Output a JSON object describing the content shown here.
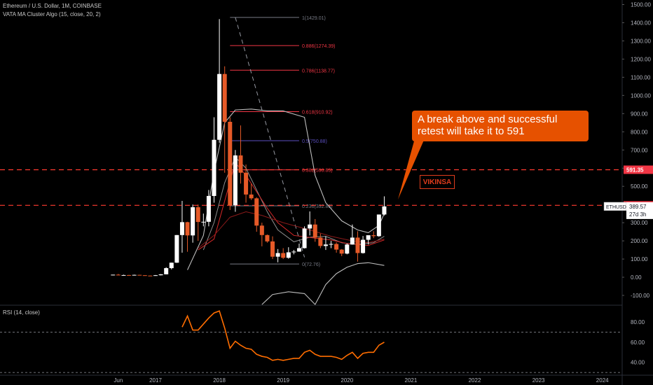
{
  "header": {
    "symbol_line": "Ethereum / U.S. Dollar, 1M, COINBASE",
    "indicator_line": "VATA MA Cluster Algo (15, close, 20, 2)",
    "rsi_label": "RSI (14, close)"
  },
  "annotations": {
    "callout": "A break above and successful retest will take it to 591",
    "stamp": "VIKINSA"
  },
  "colors": {
    "background": "#000000",
    "up_candle": "#ffffff",
    "down_candle": "#e65a28",
    "callout": "#e65100",
    "level_line": "#ff3b30",
    "rsi_line": "#ff6d00"
  },
  "chart_data": [
    {
      "type": "candlestick",
      "y_axis_ticks": [
        -100,
        0,
        100,
        200,
        300,
        400,
        500,
        600,
        700,
        800,
        900,
        1000,
        1100,
        1200,
        1300,
        1400,
        1500
      ],
      "y_axis_labels": [
        "-100.00",
        "0.00",
        "100.00",
        "200.00",
        "300.00",
        "400.00",
        "500.00",
        "600.00",
        "700.00",
        "800.00",
        "900.00",
        "1000.00",
        "1100.00",
        "1200.00",
        "1300.00",
        "1400.00",
        "1500.00"
      ],
      "ylim": [
        -150,
        1525
      ],
      "x_axis_labels": [
        "Jun",
        "2017",
        "2018",
        "2019",
        "2020",
        "2021",
        "2022",
        "2023",
        "2024"
      ],
      "x_axis_positions": [
        "2016-06",
        "2017-01",
        "2018-01",
        "2019-01",
        "2020-01",
        "2021-01",
        "2022-01",
        "2023-01",
        "2024-01"
      ],
      "candles": [
        {
          "t": "2016-05",
          "o": 12,
          "h": 14,
          "l": 10,
          "c": 14
        },
        {
          "t": "2016-06",
          "o": 14,
          "h": 18,
          "l": 11,
          "c": 12
        },
        {
          "t": "2016-07",
          "o": 12,
          "h": 14,
          "l": 11,
          "c": 12
        },
        {
          "t": "2016-08",
          "o": 12,
          "h": 13,
          "l": 10,
          "c": 11
        },
        {
          "t": "2016-09",
          "o": 11,
          "h": 14,
          "l": 11,
          "c": 13
        },
        {
          "t": "2016-10",
          "o": 13,
          "h": 13,
          "l": 10,
          "c": 11
        },
        {
          "t": "2016-11",
          "o": 11,
          "h": 11,
          "l": 8,
          "c": 9
        },
        {
          "t": "2016-12",
          "o": 9,
          "h": 9,
          "l": 6,
          "c": 8
        },
        {
          "t": "2017-01",
          "o": 8,
          "h": 12,
          "l": 8,
          "c": 11
        },
        {
          "t": "2017-02",
          "o": 11,
          "h": 17,
          "l": 10,
          "c": 16
        },
        {
          "t": "2017-03",
          "o": 16,
          "h": 55,
          "l": 16,
          "c": 50
        },
        {
          "t": "2017-04",
          "o": 50,
          "h": 80,
          "l": 43,
          "c": 80
        },
        {
          "t": "2017-05",
          "o": 80,
          "h": 232,
          "l": 79,
          "c": 232
        },
        {
          "t": "2017-06",
          "o": 232,
          "h": 420,
          "l": 135,
          "c": 303
        },
        {
          "t": "2017-07",
          "o": 303,
          "h": 305,
          "l": 140,
          "c": 230
        },
        {
          "t": "2017-08",
          "o": 230,
          "h": 400,
          "l": 190,
          "c": 385
        },
        {
          "t": "2017-09",
          "o": 385,
          "h": 400,
          "l": 200,
          "c": 304
        },
        {
          "t": "2017-10",
          "o": 304,
          "h": 350,
          "l": 280,
          "c": 305
        },
        {
          "t": "2017-11",
          "o": 305,
          "h": 480,
          "l": 280,
          "c": 447
        },
        {
          "t": "2017-12",
          "o": 447,
          "h": 880,
          "l": 410,
          "c": 756
        },
        {
          "t": "2018-01",
          "o": 756,
          "h": 1420,
          "l": 740,
          "c": 1118
        },
        {
          "t": "2018-02",
          "o": 1118,
          "h": 1160,
          "l": 575,
          "c": 855
        },
        {
          "t": "2018-03",
          "o": 855,
          "h": 880,
          "l": 370,
          "c": 396
        },
        {
          "t": "2018-04",
          "o": 396,
          "h": 700,
          "l": 360,
          "c": 670
        },
        {
          "t": "2018-05",
          "o": 670,
          "h": 835,
          "l": 515,
          "c": 575
        },
        {
          "t": "2018-06",
          "o": 575,
          "h": 620,
          "l": 410,
          "c": 455
        },
        {
          "t": "2018-07",
          "o": 455,
          "h": 515,
          "l": 425,
          "c": 434
        },
        {
          "t": "2018-08",
          "o": 434,
          "h": 440,
          "l": 250,
          "c": 284
        },
        {
          "t": "2018-09",
          "o": 284,
          "h": 300,
          "l": 170,
          "c": 232
        },
        {
          "t": "2018-10",
          "o": 232,
          "h": 235,
          "l": 190,
          "c": 197
        },
        {
          "t": "2018-11",
          "o": 197,
          "h": 225,
          "l": 100,
          "c": 113
        },
        {
          "t": "2018-12",
          "o": 113,
          "h": 155,
          "l": 82,
          "c": 133
        },
        {
          "t": "2019-01",
          "o": 133,
          "h": 160,
          "l": 100,
          "c": 107
        },
        {
          "t": "2019-02",
          "o": 107,
          "h": 165,
          "l": 102,
          "c": 137
        },
        {
          "t": "2019-03",
          "o": 137,
          "h": 150,
          "l": 126,
          "c": 141
        },
        {
          "t": "2019-04",
          "o": 141,
          "h": 185,
          "l": 140,
          "c": 160
        },
        {
          "t": "2019-05",
          "o": 160,
          "h": 280,
          "l": 158,
          "c": 268
        },
        {
          "t": "2019-06",
          "o": 268,
          "h": 362,
          "l": 230,
          "c": 290
        },
        {
          "t": "2019-07",
          "o": 290,
          "h": 320,
          "l": 195,
          "c": 218
        },
        {
          "t": "2019-08",
          "o": 218,
          "h": 240,
          "l": 160,
          "c": 172
        },
        {
          "t": "2019-09",
          "o": 172,
          "h": 225,
          "l": 150,
          "c": 180
        },
        {
          "t": "2019-10",
          "o": 180,
          "h": 200,
          "l": 160,
          "c": 183
        },
        {
          "t": "2019-11",
          "o": 183,
          "h": 192,
          "l": 135,
          "c": 152
        },
        {
          "t": "2019-12",
          "o": 152,
          "h": 155,
          "l": 116,
          "c": 130
        },
        {
          "t": "2020-01",
          "o": 130,
          "h": 185,
          "l": 126,
          "c": 180
        },
        {
          "t": "2020-02",
          "o": 180,
          "h": 290,
          "l": 179,
          "c": 218
        },
        {
          "t": "2020-03",
          "o": 218,
          "h": 253,
          "l": 86,
          "c": 133
        },
        {
          "t": "2020-04",
          "o": 133,
          "h": 227,
          "l": 130,
          "c": 206
        },
        {
          "t": "2020-05",
          "o": 206,
          "h": 227,
          "l": 180,
          "c": 231
        },
        {
          "t": "2020-06",
          "o": 231,
          "h": 253,
          "l": 215,
          "c": 226
        },
        {
          "t": "2020-07",
          "o": 226,
          "h": 345,
          "l": 222,
          "c": 345
        },
        {
          "t": "2020-08",
          "o": 345,
          "h": 445,
          "l": 340,
          "c": 389.57
        }
      ],
      "vata_ma_lines": {
        "upper_band": [
          {
            "t": "2017-07",
            "v": 40
          },
          {
            "t": "2017-10",
            "v": 230
          },
          {
            "t": "2017-12",
            "v": 580
          },
          {
            "t": "2018-02",
            "v": 850
          },
          {
            "t": "2018-04",
            "v": 920
          },
          {
            "t": "2018-07",
            "v": 925
          },
          {
            "t": "2018-10",
            "v": 915
          },
          {
            "t": "2019-01",
            "v": 915
          },
          {
            "t": "2019-05",
            "v": 880
          },
          {
            "t": "2019-07",
            "v": 560
          },
          {
            "t": "2019-09",
            "v": 410
          },
          {
            "t": "2019-12",
            "v": 310
          },
          {
            "t": "2020-03",
            "v": 260
          },
          {
            "t": "2020-05",
            "v": 245
          },
          {
            "t": "2020-07",
            "v": 285
          },
          {
            "t": "2020-08",
            "v": 350
          }
        ],
        "mid_line": [
          {
            "t": "2017-10",
            "v": 150
          },
          {
            "t": "2017-12",
            "v": 300
          },
          {
            "t": "2018-02",
            "v": 520
          },
          {
            "t": "2018-04",
            "v": 660
          },
          {
            "t": "2018-06",
            "v": 600
          },
          {
            "t": "2018-08",
            "v": 480
          },
          {
            "t": "2018-10",
            "v": 360
          },
          {
            "t": "2018-12",
            "v": 260
          },
          {
            "t": "2019-03",
            "v": 195
          },
          {
            "t": "2019-06",
            "v": 220
          },
          {
            "t": "2019-09",
            "v": 225
          },
          {
            "t": "2019-12",
            "v": 190
          },
          {
            "t": "2020-03",
            "v": 180
          },
          {
            "t": "2020-06",
            "v": 190
          },
          {
            "t": "2020-08",
            "v": 225
          }
        ],
        "red_ma": [
          {
            "t": "2017-09",
            "v": 150
          },
          {
            "t": "2017-12",
            "v": 210
          },
          {
            "t": "2018-02",
            "v": 420
          },
          {
            "t": "2018-04",
            "v": 630
          },
          {
            "t": "2018-06",
            "v": 560
          },
          {
            "t": "2018-08",
            "v": 470
          },
          {
            "t": "2018-10",
            "v": 380
          },
          {
            "t": "2018-12",
            "v": 300
          },
          {
            "t": "2019-03",
            "v": 230
          },
          {
            "t": "2019-07",
            "v": 215
          },
          {
            "t": "2019-10",
            "v": 205
          },
          {
            "t": "2020-01",
            "v": 185
          },
          {
            "t": "2020-05",
            "v": 175
          },
          {
            "t": "2020-08",
            "v": 205
          }
        ],
        "dark_red_ma": [
          {
            "t": "2017-09",
            "v": 160
          },
          {
            "t": "2017-12",
            "v": 230
          },
          {
            "t": "2018-03",
            "v": 330
          },
          {
            "t": "2018-06",
            "v": 360
          },
          {
            "t": "2018-09",
            "v": 340
          },
          {
            "t": "2019-01",
            "v": 300
          },
          {
            "t": "2019-06",
            "v": 260
          },
          {
            "t": "2019-10",
            "v": 225
          },
          {
            "t": "2020-02",
            "v": 200
          },
          {
            "t": "2020-05",
            "v": 190
          },
          {
            "t": "2020-08",
            "v": 210
          }
        ],
        "lower_band": [
          {
            "t": "2018-09",
            "v": -150
          },
          {
            "t": "2018-11",
            "v": -95
          },
          {
            "t": "2019-02",
            "v": -80
          },
          {
            "t": "2019-05",
            "v": -90
          },
          {
            "t": "2019-07",
            "v": -150
          },
          {
            "t": "2019-09",
            "v": -40
          },
          {
            "t": "2019-11",
            "v": 20
          },
          {
            "t": "2020-01",
            "v": 55
          },
          {
            "t": "2020-03",
            "v": 75
          },
          {
            "t": "2020-05",
            "v": 80
          },
          {
            "t": "2020-08",
            "v": 65
          }
        ]
      },
      "fibonacci": {
        "high": 1429.01,
        "low": 72.76,
        "t_start": "2018-03",
        "t_end": "2019-04",
        "levels": [
          {
            "label": "1(1429.01)",
            "value": 1429.01,
            "color": "#787b86"
          },
          {
            "label": "0.886(1274.39)",
            "value": 1274.39,
            "color": "#f23645"
          },
          {
            "label": "0.786(1138.77)",
            "value": 1138.77,
            "color": "#f23645"
          },
          {
            "label": "0.618(910.92)",
            "value": 910.92,
            "color": "#f23645"
          },
          {
            "label": "0.5(750.88)",
            "value": 750.88,
            "color": "#5b4fbf"
          },
          {
            "label": "0.382(590.85)",
            "value": 590.85,
            "color": "#f23645"
          },
          {
            "label": "0.236(392.83)",
            "value": 392.83,
            "color": "#787b86"
          },
          {
            "label": "0(72.76)",
            "value": 72.76,
            "color": "#787b86"
          }
        ]
      },
      "trend_line": {
        "t1": "2018-04",
        "v1": 1429,
        "t2": "2019-05",
        "v2": 110
      },
      "horizontal_levels": [
        591.35,
        395.54
      ],
      "price_labels": [
        {
          "value": 591.35,
          "text": "591.35",
          "style": "red"
        },
        {
          "value": 395.54,
          "text": "395.54",
          "style": "red"
        },
        {
          "value": 389.57,
          "text": "389.57",
          "style": "white",
          "tag": "ETHUSD"
        }
      ],
      "countdown": "27d 3h"
    },
    {
      "type": "line",
      "name": "RSI (14, close)",
      "y_axis_ticks": [
        40,
        60,
        80
      ],
      "y_axis_labels": [
        "40.00",
        "60.00",
        "80.00"
      ],
      "ylim": [
        28,
        96
      ],
      "reference_lines": [
        70,
        30
      ],
      "points": [
        {
          "t": "2017-06",
          "v": 75
        },
        {
          "t": "2017-07",
          "v": 86
        },
        {
          "t": "2017-08",
          "v": 72
        },
        {
          "t": "2017-09",
          "v": 72
        },
        {
          "t": "2017-10",
          "v": 78
        },
        {
          "t": "2017-11",
          "v": 84
        },
        {
          "t": "2017-12",
          "v": 89
        },
        {
          "t": "2018-01",
          "v": 91
        },
        {
          "t": "2018-02",
          "v": 74
        },
        {
          "t": "2018-03",
          "v": 54
        },
        {
          "t": "2018-04",
          "v": 61
        },
        {
          "t": "2018-05",
          "v": 57
        },
        {
          "t": "2018-06",
          "v": 54
        },
        {
          "t": "2018-07",
          "v": 53
        },
        {
          "t": "2018-08",
          "v": 48
        },
        {
          "t": "2018-09",
          "v": 46
        },
        {
          "t": "2018-10",
          "v": 45
        },
        {
          "t": "2018-11",
          "v": 42
        },
        {
          "t": "2018-12",
          "v": 43
        },
        {
          "t": "2019-01",
          "v": 42
        },
        {
          "t": "2019-02",
          "v": 43
        },
        {
          "t": "2019-03",
          "v": 44
        },
        {
          "t": "2019-04",
          "v": 44
        },
        {
          "t": "2019-05",
          "v": 50
        },
        {
          "t": "2019-06",
          "v": 52
        },
        {
          "t": "2019-07",
          "v": 48
        },
        {
          "t": "2019-08",
          "v": 46
        },
        {
          "t": "2019-09",
          "v": 46
        },
        {
          "t": "2019-10",
          "v": 46
        },
        {
          "t": "2019-11",
          "v": 45
        },
        {
          "t": "2019-12",
          "v": 43
        },
        {
          "t": "2020-01",
          "v": 47
        },
        {
          "t": "2020-02",
          "v": 50
        },
        {
          "t": "2020-03",
          "v": 44
        },
        {
          "t": "2020-04",
          "v": 49
        },
        {
          "t": "2020-05",
          "v": 50
        },
        {
          "t": "2020-06",
          "v": 50
        },
        {
          "t": "2020-07",
          "v": 57
        },
        {
          "t": "2020-08",
          "v": 60
        }
      ]
    }
  ]
}
